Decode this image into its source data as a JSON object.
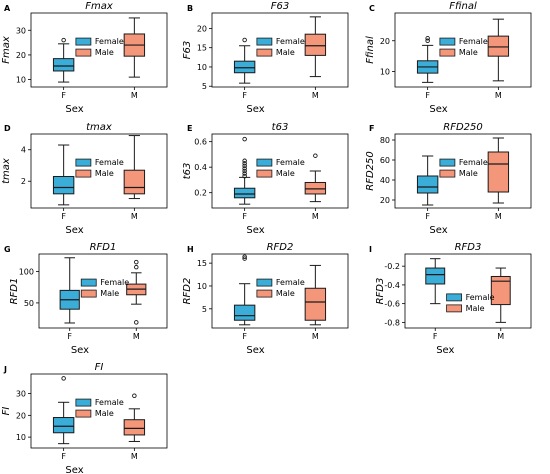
{
  "colors": {
    "female": "#3aaed8",
    "male": "#f4967a",
    "line": "#1a1a1a"
  },
  "chart_data": [
    {
      "type": "box",
      "letter": "A",
      "title": "Fmax",
      "xlabel": "Sex",
      "ylabel": "Fmax",
      "categories": [
        "F",
        "M"
      ],
      "legend": [
        "Female",
        "Male"
      ],
      "yticks": [
        10,
        20,
        30
      ],
      "ylim": [
        7,
        37
      ],
      "boxes": [
        {
          "whislo": 9,
          "q1": 13.5,
          "med": 15.5,
          "q3": 18.5,
          "whishi": 24.5,
          "fliers": [
            26
          ]
        },
        {
          "whislo": 11,
          "q1": 19.5,
          "med": 24,
          "q3": 28.5,
          "whishi": 35,
          "fliers": []
        }
      ]
    },
    {
      "type": "box",
      "letter": "B",
      "title": "F63",
      "xlabel": "Sex",
      "ylabel": "F63",
      "categories": [
        "F",
        "M"
      ],
      "legend": [
        "Female",
        "Male"
      ],
      "yticks": [
        5,
        10,
        15,
        20
      ],
      "ylim": [
        4.8,
        24
      ],
      "boxes": [
        {
          "whislo": 5.8,
          "q1": 8.5,
          "med": 9.8,
          "q3": 11.5,
          "whishi": 15.5,
          "fliers": [
            17
          ]
        },
        {
          "whislo": 7.5,
          "q1": 13,
          "med": 15.5,
          "q3": 18.5,
          "whishi": 23,
          "fliers": []
        }
      ]
    },
    {
      "type": "box",
      "letter": "C",
      "title": "Ffinal",
      "xlabel": "Sex",
      "ylabel": "Ffinal",
      "categories": [
        "F",
        "M"
      ],
      "legend": [
        "Female",
        "Male"
      ],
      "yticks": [
        10,
        20
      ],
      "ylim": [
        5,
        29
      ],
      "boxes": [
        {
          "whislo": 6.5,
          "q1": 9.5,
          "med": 11.5,
          "q3": 13.5,
          "whishi": 18.5,
          "fliers": [
            20,
            20.8
          ]
        },
        {
          "whislo": 7,
          "q1": 15,
          "med": 18,
          "q3": 21.5,
          "whishi": 27,
          "fliers": []
        }
      ]
    },
    {
      "type": "box",
      "letter": "D",
      "title": "tmax",
      "xlabel": "Sex",
      "ylabel": "tmax",
      "categories": [
        "F",
        "M"
      ],
      "legend": [
        "Female",
        "Male"
      ],
      "yticks": [
        2,
        4
      ],
      "ylim": [
        0.3,
        5
      ],
      "boxes": [
        {
          "whislo": 0.5,
          "q1": 1.2,
          "med": 1.6,
          "q3": 2.3,
          "whishi": 4.3,
          "fliers": []
        },
        {
          "whislo": 0.9,
          "q1": 1.2,
          "med": 1.6,
          "q3": 2.7,
          "whishi": 4.9,
          "fliers": []
        }
      ]
    },
    {
      "type": "box",
      "letter": "E",
      "title": "t63",
      "xlabel": "Sex",
      "ylabel": "t63",
      "categories": [
        "F",
        "M"
      ],
      "legend": [
        "Female",
        "Male"
      ],
      "yticks": [
        0.2,
        0.4,
        0.6
      ],
      "ylim": [
        0.08,
        0.66
      ],
      "boxes": [
        {
          "whislo": 0.11,
          "q1": 0.16,
          "med": 0.19,
          "q3": 0.235,
          "whishi": 0.32,
          "fliers": [
            0.33,
            0.35,
            0.37,
            0.39,
            0.41,
            0.43,
            0.45,
            0.62
          ]
        },
        {
          "whislo": 0.13,
          "q1": 0.19,
          "med": 0.23,
          "q3": 0.28,
          "whishi": 0.37,
          "fliers": [
            0.49
          ]
        }
      ]
    },
    {
      "type": "box",
      "letter": "F",
      "title": "RFD250",
      "xlabel": "Sex",
      "ylabel": "RFD250",
      "categories": [
        "F",
        "M"
      ],
      "legend": [
        "Female",
        "Male"
      ],
      "yticks": [
        20,
        40,
        60,
        80
      ],
      "ylim": [
        12,
        86
      ],
      "boxes": [
        {
          "whislo": 15,
          "q1": 27,
          "med": 33,
          "q3": 44,
          "whishi": 64,
          "fliers": []
        },
        {
          "whislo": 17,
          "q1": 28,
          "med": 56,
          "q3": 68,
          "whishi": 82,
          "fliers": []
        }
      ]
    },
    {
      "type": "box",
      "letter": "G",
      "title": "RFD1",
      "xlabel": "Sex",
      "ylabel": "RFD1",
      "categories": [
        "F",
        "M"
      ],
      "legend": [
        "Female",
        "Male"
      ],
      "yticks": [
        50,
        100
      ],
      "ylim": [
        10,
        128
      ],
      "boxes": [
        {
          "whislo": 18,
          "q1": 40,
          "med": 55,
          "q3": 70,
          "whishi": 122,
          "fliers": []
        },
        {
          "whislo": 48,
          "q1": 63,
          "med": 72,
          "q3": 80,
          "whishi": 98,
          "fliers": [
            19,
            107,
            115
          ]
        }
      ]
    },
    {
      "type": "box",
      "letter": "H",
      "title": "RFD2",
      "xlabel": "Sex",
      "ylabel": "RFD2",
      "categories": [
        "F",
        "M"
      ],
      "legend": [
        "Female",
        "Male"
      ],
      "yticks": [
        5,
        10,
        15
      ],
      "ylim": [
        0.8,
        17
      ],
      "boxes": [
        {
          "whislo": 1.5,
          "q1": 2.5,
          "med": 3.5,
          "q3": 5.8,
          "whishi": 10.5,
          "fliers": [
            16,
            16.4
          ]
        },
        {
          "whislo": 1.5,
          "q1": 2.5,
          "med": 6.5,
          "q3": 9.5,
          "whishi": 14.5,
          "fliers": []
        }
      ]
    },
    {
      "type": "box",
      "letter": "I",
      "title": "RFD3",
      "xlabel": "Sex",
      "ylabel": "RFD3",
      "categories": [
        "F",
        "M"
      ],
      "legend": [
        "Female",
        "Male"
      ],
      "yticks": [
        -0.8,
        -0.6,
        -0.4,
        -0.2
      ],
      "ylim": [
        -0.86,
        -0.07
      ],
      "boxes": [
        {
          "whislo": -0.6,
          "q1": -0.39,
          "med": -0.29,
          "q3": -0.22,
          "whishi": -0.12,
          "fliers": []
        },
        {
          "whislo": -0.8,
          "q1": -0.61,
          "med": -0.36,
          "q3": -0.31,
          "whishi": -0.22,
          "fliers": []
        }
      ]
    },
    {
      "type": "box",
      "letter": "J",
      "title": "FI",
      "xlabel": "Sex",
      "ylabel": "FI",
      "categories": [
        "F",
        "M"
      ],
      "legend": [
        "Female",
        "Male"
      ],
      "yticks": [
        10,
        20,
        30
      ],
      "ylim": [
        5,
        39
      ],
      "boxes": [
        {
          "whislo": 7,
          "q1": 12,
          "med": 15,
          "q3": 19,
          "whishi": 26,
          "fliers": [
            37
          ]
        },
        {
          "whislo": 8,
          "q1": 11,
          "med": 14,
          "q3": 18,
          "whishi": 23,
          "fliers": [
            29
          ]
        }
      ]
    }
  ]
}
